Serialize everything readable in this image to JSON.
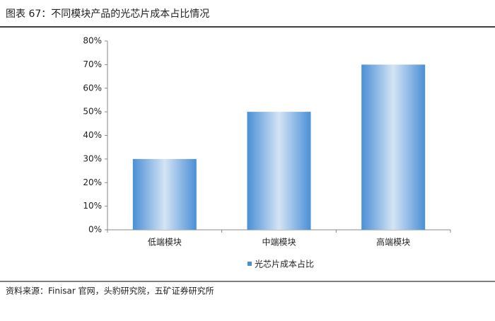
{
  "chart_data": {
    "type": "bar",
    "title": "图表 67：不同模块产品的光芯片成本占比情况",
    "categories": [
      "低端模块",
      "中端模块",
      "高端模块"
    ],
    "series": [
      {
        "name": "光芯片成本占比",
        "color": "#4a8fd6",
        "values": [
          30,
          50,
          70
        ]
      }
    ],
    "ylim": [
      0,
      80
    ],
    "yticks": [
      {
        "value": 0,
        "label": "0%"
      },
      {
        "value": 10,
        "label": "10%"
      },
      {
        "value": 20,
        "label": "20%"
      },
      {
        "value": 30,
        "label": "30%"
      },
      {
        "value": 40,
        "label": "40%"
      },
      {
        "value": 50,
        "label": "50%"
      },
      {
        "value": 60,
        "label": "60%"
      },
      {
        "value": 70,
        "label": "70%"
      },
      {
        "value": 80,
        "label": "80%"
      }
    ],
    "grid": false,
    "legend": "bottom",
    "source": "资料来源：Finisar 官网，头豹研究院，五矿证券研究所"
  }
}
